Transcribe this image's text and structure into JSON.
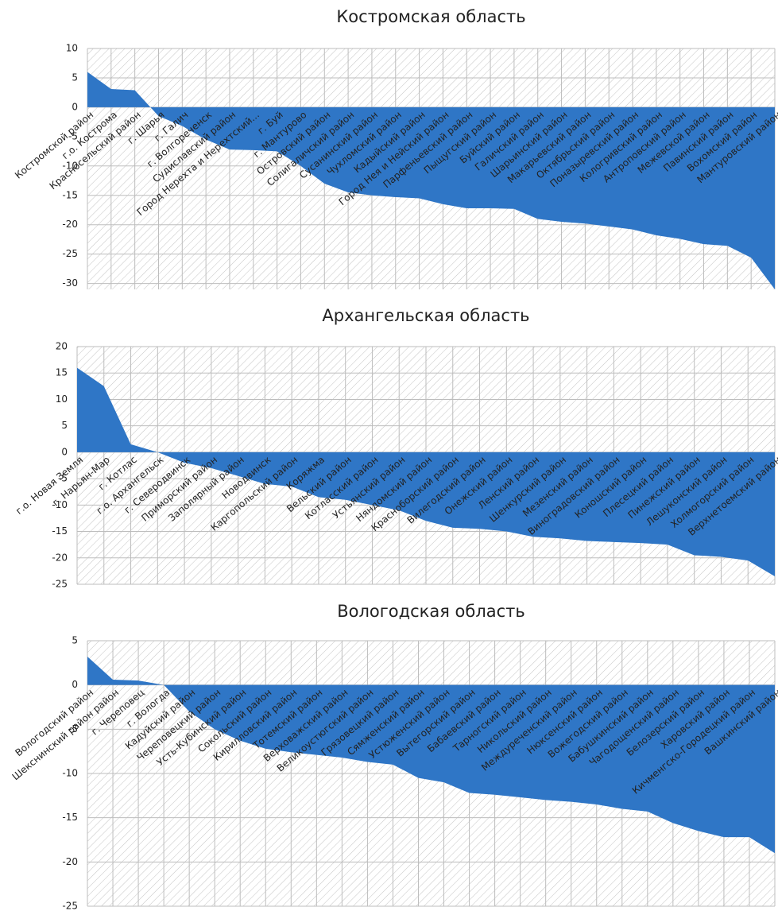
{
  "chart_data": [
    {
      "type": "area",
      "title": "Костромская область",
      "color": "#2f76c6",
      "grid": true,
      "categories": [
        "Костромской район",
        "г.о. Кострома",
        "Красносельский район",
        "г. Шарья",
        "г. Галич",
        "г. Волгореченск",
        "Судиславский  район",
        "Город Нерехта и Нерехтский...",
        "г. Буй",
        "г. Мантурово",
        "Островский район",
        "Солигаличский  район",
        "Сусанинский  район",
        "Чухломский  район",
        "Кадыйский район",
        "Город Нея и Нейский район",
        "Парфеньевский  район",
        "Пыщугский  район",
        "Буйский район",
        "Галичский район",
        "Шарьинский  район",
        "Макарьевский район",
        "Октябрьский  район",
        "Поназыревский  район",
        "Кологривский район",
        "Антроповский район",
        "Межевской район",
        "Павинский  район",
        "Вохомский район",
        "Мантуровский район"
      ],
      "values": [
        6,
        3.1,
        2.9,
        -1.5,
        -3.2,
        -5.5,
        -7.2,
        -7.3,
        -7.5,
        -10,
        -13,
        -14.5,
        -15,
        -15.3,
        -15.5,
        -16.5,
        -17.2,
        -17.2,
        -17.3,
        -19,
        -19.5,
        -19.8,
        -20.3,
        -20.8,
        -21.8,
        -22.4,
        -23.3,
        -23.6,
        -25.6,
        -31
      ],
      "ylim": [
        -31,
        10
      ],
      "yticks": [
        -30,
        -25,
        -20,
        -15,
        -10,
        -5,
        0,
        5,
        10
      ]
    },
    {
      "type": "area",
      "title": "Архангельская область",
      "color": "#2f76c6",
      "grid": true,
      "categories": [
        "г.о. Новая Земля",
        "г. Нарьян-Мар",
        "г. Котлас",
        "г.о. Архангельск",
        "г. Северодвинск",
        "Приморский  район",
        "Заполярный район",
        "Новодвинск",
        "Каргопольский  район",
        "Коряжма",
        "Вельский район",
        "Котласский район",
        "Устьянский  район",
        "Няндомский  район",
        "Красноборский  район",
        "Вилегодский  район",
        "Онежский  район",
        "Ленский  район",
        "Шенкурский  район",
        "Мезенский  район",
        "Виноградовский  район",
        "Коношский район",
        "Плесецкий район",
        "Пинежский район",
        "Лешуконский  район",
        "Холмогорский район",
        "Верхнетоемский район"
      ],
      "values": [
        16,
        12.5,
        1.5,
        0,
        -2,
        -3,
        -4.5,
        -6,
        -6.5,
        -8.5,
        -9,
        -10,
        -11,
        -13,
        -14.3,
        -14.5,
        -15,
        -16,
        -16.3,
        -16.8,
        -17,
        -17.2,
        -17.5,
        -19.5,
        -19.8,
        -20.5,
        -23.5
      ],
      "ylim": [
        -25,
        20
      ],
      "yticks": [
        -25,
        -20,
        -15,
        -10,
        -5,
        0,
        5,
        10,
        15,
        20
      ]
    },
    {
      "type": "area",
      "title": "Вологодская область",
      "color": "#2f76c6",
      "grid": true,
      "categories": [
        "Вологодский район",
        "Шекснинский район район",
        "г. Череповец",
        "г. Вологда",
        "Кадуйский район",
        "Череповецкий район",
        "Усть-Кубинский район",
        "Сокольский район",
        "Кирилловский район",
        "Тотемский район",
        "Верховажский район",
        "Великоустюгский район",
        "Грязовецкий район",
        "Сямженский район",
        "Устюженский район",
        "Вытегорский район",
        "Бабаевский район",
        "Тарногский район",
        "Никольский район",
        "Междуреченский район",
        "Нюксенский район",
        "Вожегодский район",
        "Бабушкинский район",
        "Чагодощенский район",
        "Белозерский район",
        "Харовский район",
        "Кичменгско-Городецкий район",
        "Вашкинский район"
      ],
      "values": [
        3.2,
        0.6,
        0.5,
        0,
        -3,
        -5,
        -6.3,
        -7.2,
        -7.6,
        -7.9,
        -8.2,
        -8.7,
        -9,
        -10.5,
        -11,
        -12.2,
        -12.4,
        -12.7,
        -13,
        -13.2,
        -13.5,
        -14,
        -14.3,
        -15.6,
        -16.5,
        -17.2,
        -17.2,
        -19
      ],
      "ylim": [
        -25,
        5
      ],
      "yticks": [
        -25,
        -20,
        -15,
        -10,
        -5,
        0,
        5
      ]
    }
  ]
}
